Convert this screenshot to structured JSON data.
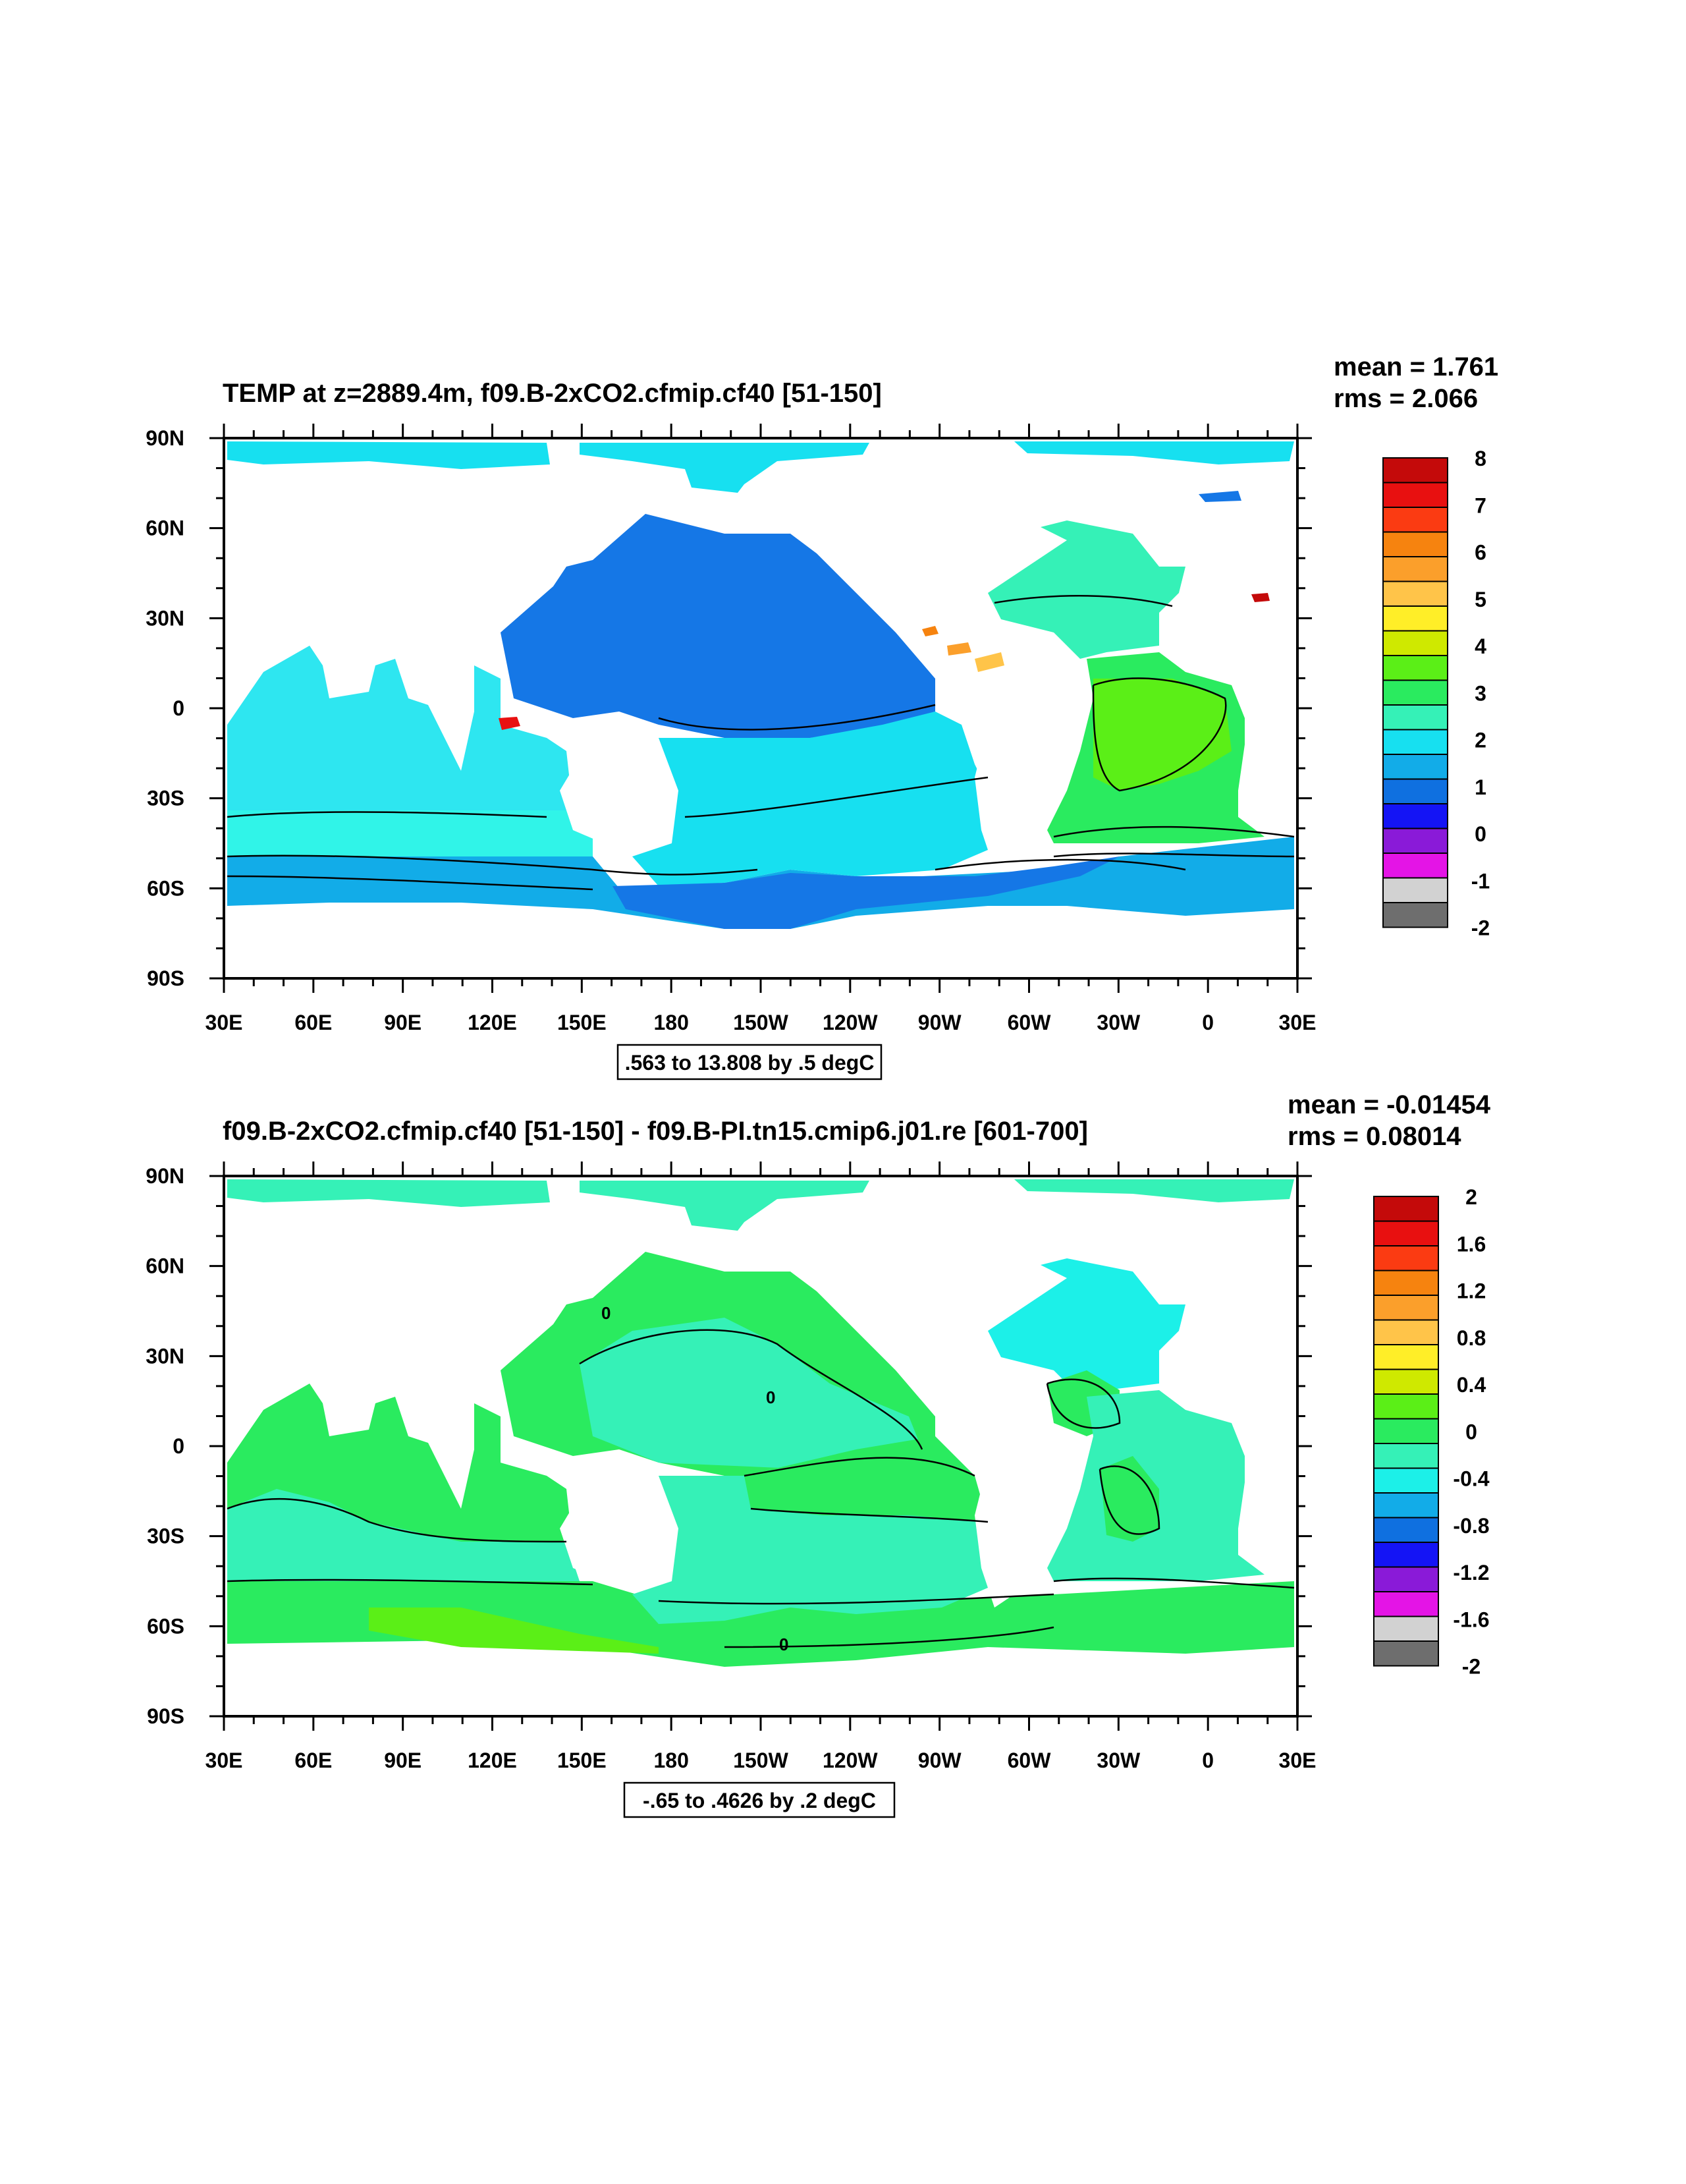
{
  "chart_data": [
    {
      "type": "heatmap",
      "title": "TEMP at z=2889.4m, f09.B-2xCO2.cfmip.cf40 [51-150]",
      "stats": {
        "mean": "mean = 1.761",
        "rms": "rms = 2.066"
      },
      "contour_info": ".563 to 13.808 by .5 degC",
      "x_ticks": [
        "30E",
        "60E",
        "90E",
        "120E",
        "150E",
        "180",
        "150W",
        "120W",
        "90W",
        "60W",
        "30W",
        "0",
        "30E"
      ],
      "y_ticks": [
        "90N",
        "60N",
        "30N",
        "0",
        "30S",
        "60S",
        "90S"
      ],
      "colorbar": {
        "labels": [
          "8",
          "7",
          "6",
          "5",
          "4",
          "3",
          "2",
          "1",
          "0",
          "-1",
          "-2"
        ],
        "colors": [
          "#c40a0a",
          "#e81010",
          "#fb3b12",
          "#f6830f",
          "#fb9f2b",
          "#ffc449",
          "#ffee28",
          "#cfe900",
          "#5bef17",
          "#2aeb5f",
          "#35f1b7",
          "#17e0f0",
          "#12ace8",
          "#0f70e0",
          "#1414f5",
          "#8a1ad8",
          "#e414e6",
          "#d2d2d2",
          "#6e6e6e"
        ]
      },
      "regions": {
        "pacific_north": "#1577e6",
        "pacific_south": "#17e0f0",
        "indian": "#2ee6f0",
        "southern_band": "#12ace8",
        "atlantic_north": "#5bef17",
        "atlantic_south": "#5bef17",
        "arctic": "#17e0f0"
      }
    },
    {
      "type": "heatmap",
      "title": "f09.B-2xCO2.cfmip.cf40 [51-150] - f09.B-PI.tn15.cmip6.j01.re [601-700]",
      "stats": {
        "mean": "mean = -0.01454",
        "rms": "rms = 0.08014"
      },
      "contour_info": "-.65 to .4626 by .2 degC",
      "contour_labels": [
        "0",
        "0",
        "0"
      ],
      "x_ticks": [
        "30E",
        "60E",
        "90E",
        "120E",
        "150E",
        "180",
        "150W",
        "120W",
        "90W",
        "60W",
        "30W",
        "0",
        "30E"
      ],
      "y_ticks": [
        "90N",
        "60N",
        "30N",
        "0",
        "30S",
        "60S",
        "90S"
      ],
      "colorbar": {
        "labels": [
          "2",
          "1.6",
          "1.2",
          "0.8",
          "0.4",
          "0",
          "-0.4",
          "-0.8",
          "-1.2",
          "-1.6",
          "-2"
        ],
        "colors": [
          "#c40a0a",
          "#e81010",
          "#fb3b12",
          "#f6830f",
          "#fb9f2b",
          "#ffc449",
          "#ffee28",
          "#cfe900",
          "#5bef17",
          "#2aeb5f",
          "#35f1b7",
          "#1cf0e8",
          "#12ace8",
          "#0f70e0",
          "#1414f5",
          "#8a1ad8",
          "#e414e6",
          "#d2d2d2",
          "#6e6e6e"
        ]
      }
    }
  ]
}
